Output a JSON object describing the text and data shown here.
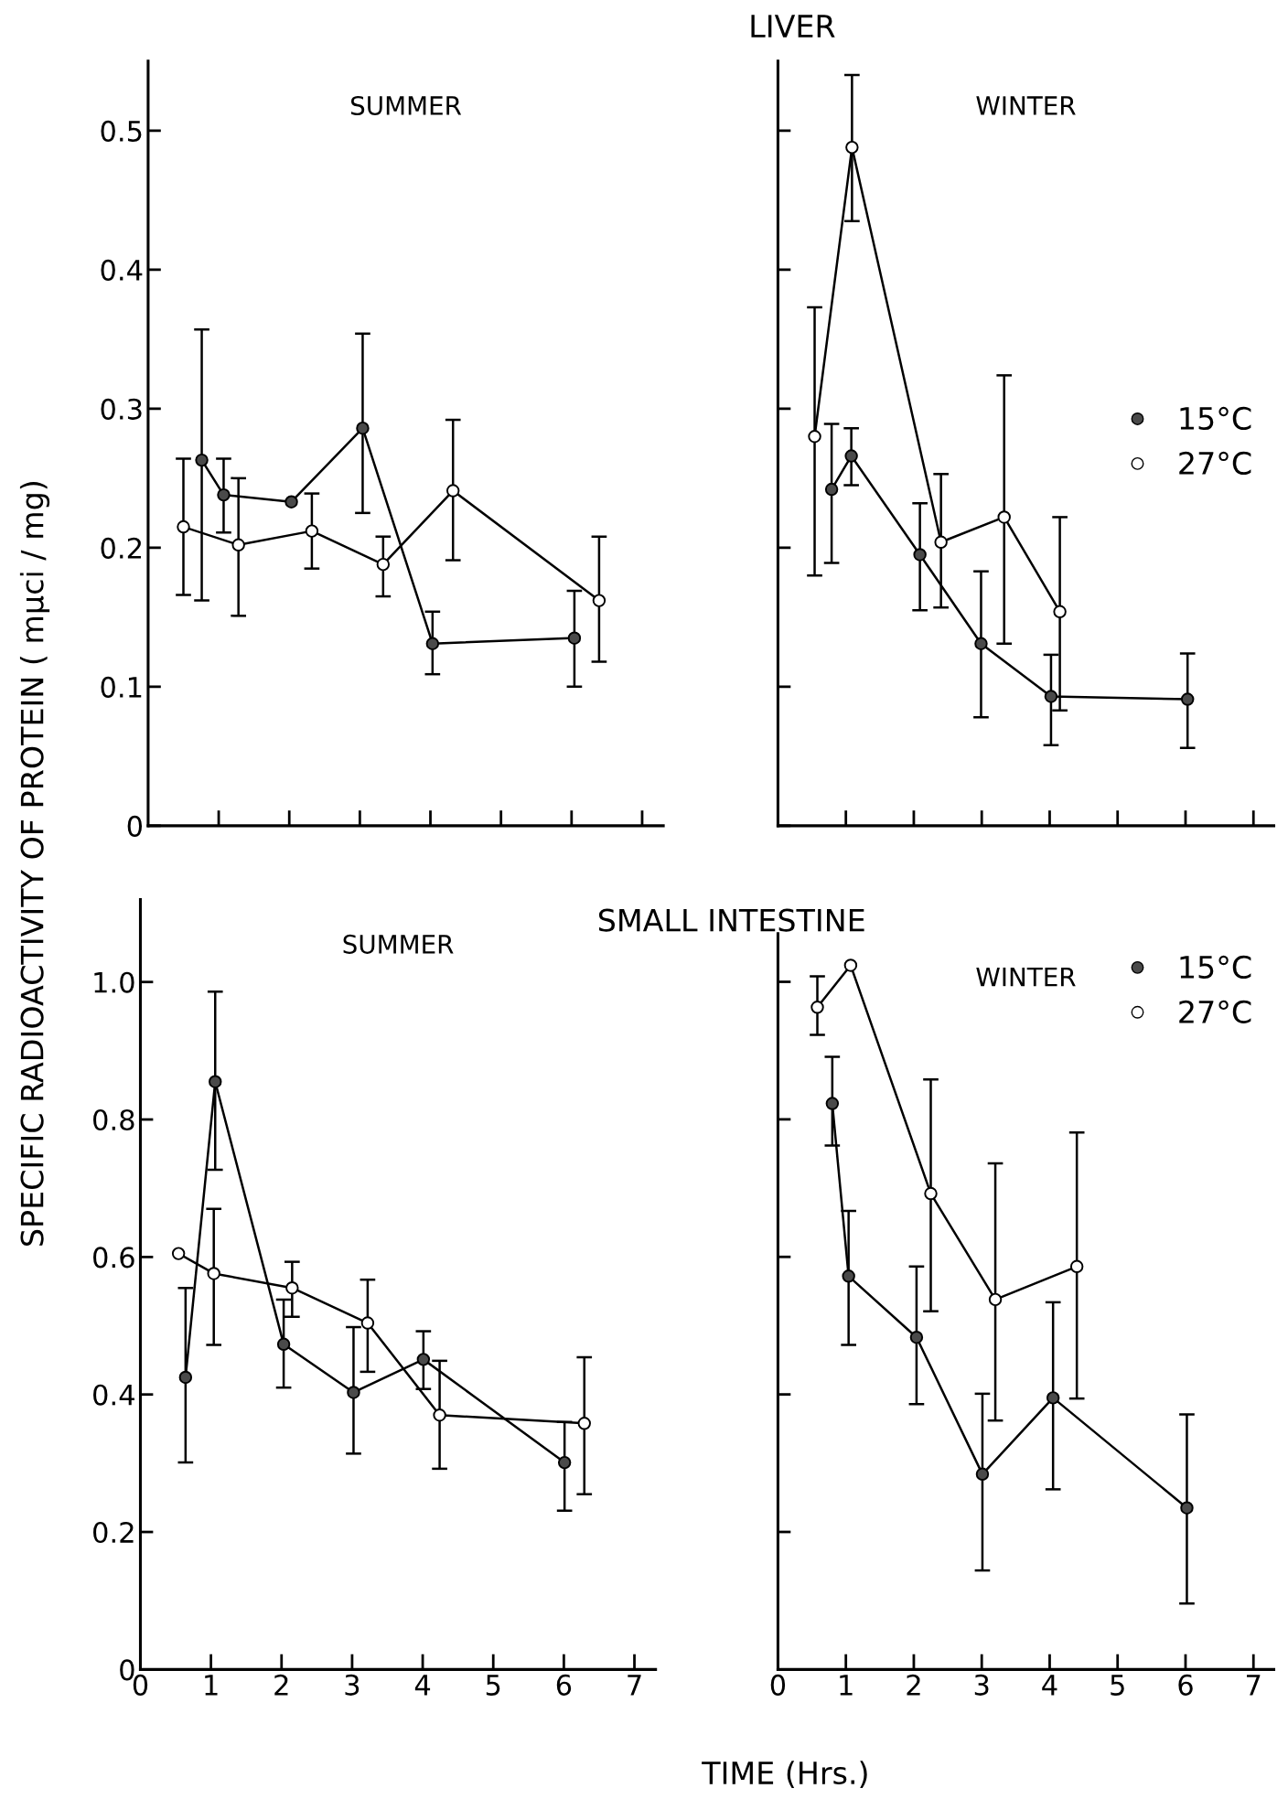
{
  "chart_data": [
    {
      "type": "line",
      "title": "SUMMER",
      "annotations": [
        "LIVER"
      ],
      "ylabel": "SPECIFIC RADIOACTIVITY OF PROTEIN ( mμci / mg)",
      "xlim": [
        0,
        7.3
      ],
      "xticks": [
        1,
        2,
        3,
        4,
        5,
        6,
        7
      ],
      "ylim": [
        0,
        0.55
      ],
      "yticks": [
        0,
        0.1,
        0.2,
        0.3,
        0.4,
        0.5
      ],
      "tick_labels": "y",
      "marker": "circle",
      "line_style": "solid",
      "grid": false,
      "legend": false,
      "series": [
        {
          "color": "#4a4a4a",
          "x": [
            0.76,
            1.07,
            2.03,
            3.04,
            4.03,
            6.04
          ],
          "values": [
            0.263,
            0.238,
            0.233,
            0.286,
            0.131,
            0.135
          ],
          "errors": [
            [
              0.162,
              0.357
            ],
            [
              0.211,
              0.264
            ],
            null,
            [
              0.225,
              0.354
            ],
            [
              0.109,
              0.154
            ],
            [
              0.1,
              0.169
            ]
          ]
        },
        {
          "color": "#ffffff",
          "x": [
            0.5,
            1.28,
            2.32,
            3.33,
            4.32,
            6.39
          ],
          "values": [
            0.215,
            0.202,
            0.212,
            0.188,
            0.241,
            0.162
          ],
          "errors": [
            [
              0.166,
              0.264
            ],
            [
              0.151,
              0.25
            ],
            [
              0.185,
              0.239
            ],
            [
              0.165,
              0.208
            ],
            [
              0.191,
              0.292
            ],
            [
              0.118,
              0.208
            ]
          ]
        }
      ]
    },
    {
      "type": "line",
      "title": "WINTER",
      "xlim": [
        0,
        7.3
      ],
      "xticks": [
        1,
        2,
        3,
        4,
        5,
        6,
        7
      ],
      "ylim": [
        0,
        0.55
      ],
      "yticks": [
        0,
        0.1,
        0.2,
        0.3,
        0.4,
        0.5
      ],
      "tick_labels": false,
      "marker": "circle",
      "line_style": "solid",
      "grid": false,
      "legend": "right",
      "series": [
        {
          "name": "15°C",
          "color": "#4a4a4a",
          "x": [
            0.79,
            1.08,
            2.09,
            2.99,
            4.02,
            6.03
          ],
          "values": [
            0.242,
            0.266,
            0.195,
            0.131,
            0.093,
            0.091
          ],
          "errors": [
            [
              0.189,
              0.289
            ],
            [
              0.245,
              0.286
            ],
            [
              0.155,
              0.232
            ],
            [
              0.078,
              0.183
            ],
            [
              0.058,
              0.123
            ],
            [
              0.056,
              0.124
            ]
          ]
        },
        {
          "name": "27°C",
          "color": "#ffffff",
          "x": [
            0.54,
            1.09,
            2.4,
            3.33,
            4.15
          ],
          "values": [
            0.28,
            0.488,
            0.204,
            0.222,
            0.154
          ],
          "errors": [
            [
              0.18,
              0.373
            ],
            [
              0.435,
              0.54
            ],
            [
              0.157,
              0.253
            ],
            [
              0.131,
              0.324
            ],
            [
              0.083,
              0.222
            ]
          ]
        }
      ]
    },
    {
      "type": "line",
      "title": "SUMMER",
      "annotations": [
        "SMALL INTESTINE"
      ],
      "xlabel": "TIME (Hrs.)",
      "xlim": [
        0,
        7.3
      ],
      "xticks": [
        0,
        1,
        2,
        3,
        4,
        5,
        6,
        7
      ],
      "ylim": [
        0,
        1.12
      ],
      "yticks": [
        0,
        0.2,
        0.4,
        0.6,
        0.8,
        {
          "value": 1.0,
          "label": "1.0"
        }
      ],
      "marker": "circle",
      "line_style": "solid",
      "grid": false,
      "legend": false,
      "series": [
        {
          "color": "#4a4a4a",
          "x": [
            0.64,
            1.06,
            2.03,
            3.02,
            4.01,
            6.01
          ],
          "values": [
            0.425,
            0.855,
            0.473,
            0.403,
            0.451,
            0.301
          ],
          "errors": [
            [
              0.301,
              0.555
            ],
            [
              0.727,
              0.986
            ],
            [
              0.41,
              0.538
            ],
            [
              0.314,
              0.498
            ],
            [
              0.408,
              0.492
            ],
            [
              0.231,
              0.36
            ]
          ]
        },
        {
          "color": "#ffffff",
          "x": [
            0.54,
            1.04,
            2.15,
            3.22,
            4.24,
            6.29
          ],
          "values": [
            0.605,
            0.576,
            0.555,
            0.504,
            0.37,
            0.358
          ],
          "errors": [
            null,
            [
              0.472,
              0.67
            ],
            [
              0.513,
              0.593
            ],
            [
              0.433,
              0.567
            ],
            [
              0.292,
              0.449
            ],
            [
              0.255,
              0.454
            ]
          ]
        }
      ]
    },
    {
      "type": "line",
      "title": "WINTER",
      "xlim": [
        0,
        7.3
      ],
      "xticks": [
        0,
        1,
        2,
        3,
        4,
        5,
        6,
        7
      ],
      "ylim": [
        0,
        1.07
      ],
      "yticks": [
        0,
        0.2,
        0.4,
        0.6,
        0.8,
        1
      ],
      "tick_labels": "x",
      "marker": "circle",
      "line_style": "solid",
      "grid": false,
      "legend": "upper right",
      "series": [
        {
          "name": "15°C",
          "color": "#4a4a4a",
          "x": [
            0.8,
            1.04,
            2.04,
            3.01,
            4.05,
            6.02
          ],
          "values": [
            0.823,
            0.572,
            0.483,
            0.284,
            0.395,
            0.235
          ],
          "errors": [
            [
              0.762,
              0.891
            ],
            [
              0.472,
              0.667
            ],
            [
              0.386,
              0.586
            ],
            [
              0.144,
              0.401
            ],
            [
              0.262,
              0.534
            ],
            [
              0.096,
              0.371
            ]
          ]
        },
        {
          "name": "27°C",
          "color": "#ffffff",
          "x": [
            0.58,
            1.07,
            2.25,
            3.2,
            4.4
          ],
          "values": [
            0.963,
            1.024,
            0.692,
            0.538,
            0.586
          ],
          "errors": [
            [
              0.923,
              1.008
            ],
            null,
            [
              0.521,
              0.858
            ],
            [
              0.362,
              0.736
            ],
            [
              0.394,
              0.781
            ]
          ]
        }
      ]
    }
  ]
}
